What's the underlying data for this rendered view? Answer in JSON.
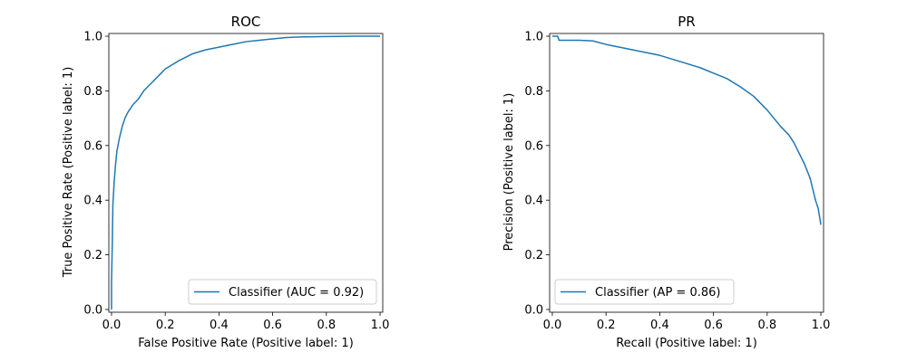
{
  "chart_data": [
    {
      "type": "line",
      "title": "ROC",
      "xlabel": "False Positive Rate (Positive label: 1)",
      "ylabel": "True Positive Rate (Positive label: 1)",
      "xlim": [
        -0.01,
        1.01
      ],
      "ylim": [
        -0.01,
        1.01
      ],
      "xticks": [
        "0.0",
        "0.2",
        "0.4",
        "0.6",
        "0.8",
        "1.0"
      ],
      "yticks": [
        "0.0",
        "0.2",
        "0.4",
        "0.6",
        "0.8",
        "1.0"
      ],
      "grid": false,
      "legend_position": "lower-right",
      "color": "#1f77b4",
      "series": [
        {
          "name": "Classifier (AUC = 0.92)",
          "x": [
            0.0,
            0.0,
            0.003,
            0.005,
            0.01,
            0.015,
            0.02,
            0.03,
            0.04,
            0.05,
            0.06,
            0.08,
            0.1,
            0.12,
            0.15,
            0.18,
            0.2,
            0.25,
            0.3,
            0.35,
            0.4,
            0.45,
            0.5,
            0.55,
            0.6,
            0.65,
            0.7,
            0.8,
            0.9,
            1.0
          ],
          "y": [
            0.0,
            0.1,
            0.25,
            0.38,
            0.47,
            0.53,
            0.58,
            0.63,
            0.67,
            0.7,
            0.72,
            0.75,
            0.77,
            0.8,
            0.83,
            0.86,
            0.88,
            0.91,
            0.935,
            0.95,
            0.96,
            0.97,
            0.98,
            0.985,
            0.99,
            0.995,
            0.997,
            0.999,
            1.0,
            1.0
          ]
        }
      ]
    },
    {
      "type": "line",
      "title": "PR",
      "xlabel": "Recall (Positive label: 1)",
      "ylabel": "Precision (Positive label: 1)",
      "xlim": [
        -0.01,
        1.01
      ],
      "ylim": [
        -0.01,
        1.01
      ],
      "xticks": [
        "0.0",
        "0.2",
        "0.4",
        "0.6",
        "0.8",
        "1.0"
      ],
      "yticks": [
        "0.0",
        "0.2",
        "0.4",
        "0.6",
        "0.8",
        "1.0"
      ],
      "grid": false,
      "legend_position": "lower-left",
      "color": "#1f77b4",
      "series": [
        {
          "name": "Classifier (AP = 0.86)",
          "x": [
            0.0,
            0.01,
            0.02,
            0.025,
            0.05,
            0.1,
            0.15,
            0.2,
            0.3,
            0.4,
            0.45,
            0.5,
            0.55,
            0.6,
            0.65,
            0.7,
            0.75,
            0.8,
            0.85,
            0.88,
            0.9,
            0.92,
            0.94,
            0.96,
            0.97,
            0.98,
            0.99,
            0.995,
            1.0
          ],
          "y": [
            1.0,
            1.0,
            1.0,
            0.985,
            0.985,
            0.985,
            0.983,
            0.97,
            0.95,
            0.93,
            0.915,
            0.9,
            0.885,
            0.865,
            0.845,
            0.815,
            0.78,
            0.73,
            0.67,
            0.64,
            0.61,
            0.57,
            0.53,
            0.48,
            0.44,
            0.4,
            0.37,
            0.34,
            0.31
          ]
        }
      ]
    }
  ]
}
